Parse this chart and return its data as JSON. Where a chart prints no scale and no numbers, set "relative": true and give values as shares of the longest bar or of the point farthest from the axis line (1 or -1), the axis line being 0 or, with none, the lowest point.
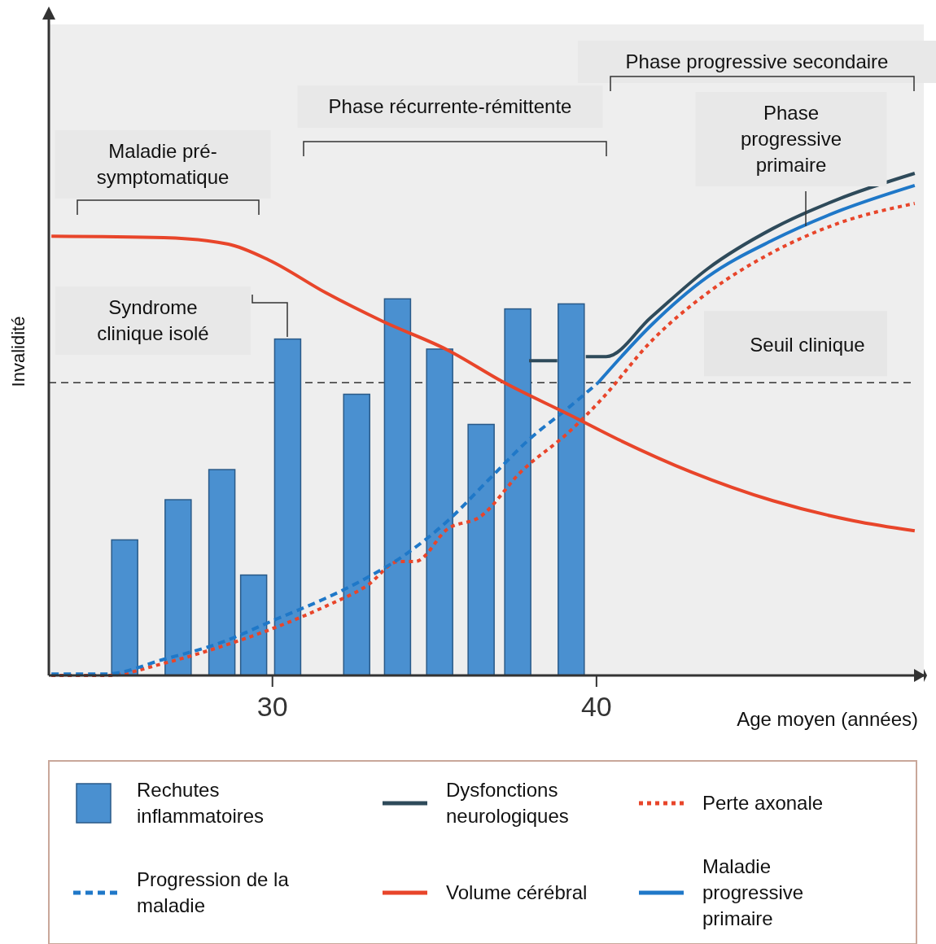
{
  "chart_data": {
    "type": "line",
    "relative": true,
    "xlabel": "Age moyen (années)",
    "ylabel": "Invalidité",
    "xlim": [
      23.1,
      50.1
    ],
    "xticks": [
      30,
      40
    ],
    "tick_labels": "x",
    "legend": "bottom",
    "annotations": [
      "Maladie pré-symptomatique",
      "Phase récurrente-rémittente",
      "Phase progressive secondaire",
      "Phase progressive primaire",
      "Syndrome clinique isolé"
    ],
    "ref_lines": [
      {
        "axis": "y",
        "value": 0.583,
        "label": "Seuil clinique",
        "color": "#333333",
        "line_style": "dashed"
      }
    ],
    "series": [
      {
        "name": "Rechutes inflammatoires",
        "type": "bar",
        "color": "#4a90d0",
        "x": [
          25.44,
          27.09,
          28.44,
          29.42,
          30.47,
          32.6,
          33.86,
          35.16,
          36.44,
          37.57,
          39.22
        ],
        "values": [
          0.27,
          0.35,
          0.41,
          0.2,
          0.67,
          0.56,
          0.75,
          0.65,
          0.5,
          0.73,
          0.74
        ]
      },
      {
        "name": "Dysfonctions neurologiques",
        "color": "#2e4a5a",
        "line_style": "solid",
        "x": [
          37.92,
          38.79,
          39.3,
          39.67,
          40.3,
          41.68,
          43.43,
          45.44,
          47.44,
          49.82
        ],
        "values": [
          0.627,
          0.627,
          null,
          0.635,
          0.635,
          0.713,
          0.81,
          0.89,
          0.948,
          1.0
        ]
      },
      {
        "name": "Perte axonale",
        "color": "#e8452a",
        "line_style": "dotted",
        "x": [
          23.18,
          24.88,
          26.64,
          28.39,
          30.15,
          31.65,
          32.9,
          33.91,
          34.41,
          35.41,
          36.41,
          37.66,
          39.17,
          40.17,
          41.68,
          43.43,
          45.44,
          47.44,
          49.82
        ],
        "values": [
          0.0,
          0.0,
          0.024,
          0.057,
          0.097,
          0.138,
          0.178,
          0.227,
          0.227,
          0.292,
          0.316,
          0.405,
          0.486,
          0.551,
          0.665,
          0.762,
          0.843,
          0.9,
          0.94
        ]
      },
      {
        "name": "Progression de la maladie",
        "color": "#1f78c8",
        "line_style": "dashed",
        "x": [
          23.18,
          24.88,
          26.64,
          28.39,
          30.15,
          31.65,
          32.9,
          34.15,
          35.41,
          36.66,
          37.92,
          39.17,
          40.05
        ],
        "values": [
          0.003,
          0.003,
          0.032,
          0.065,
          0.113,
          0.154,
          0.194,
          0.243,
          0.308,
          0.389,
          0.47,
          0.535,
          0.583
        ]
      },
      {
        "name": "Volume cérébral",
        "color": "#e8452a",
        "line_style": "solid",
        "x": [
          23.18,
          26.64,
          28.64,
          29.9,
          31.65,
          33.41,
          35.41,
          37.16,
          39.17,
          40.67,
          42.93,
          45.44,
          47.94,
          49.82
        ],
        "values": [
          0.875,
          0.872,
          0.859,
          0.827,
          0.762,
          0.705,
          0.648,
          0.583,
          0.519,
          0.47,
          0.405,
          0.348,
          0.308,
          0.288
        ]
      },
      {
        "name": "Maladie progressive primaire",
        "color": "#1f78c8",
        "line_style": "solid",
        "x": [
          40.05,
          41.68,
          43.43,
          45.44,
          47.44,
          49.82
        ],
        "values": [
          0.583,
          0.697,
          0.794,
          0.867,
          0.924,
          0.976
        ]
      }
    ]
  }
}
